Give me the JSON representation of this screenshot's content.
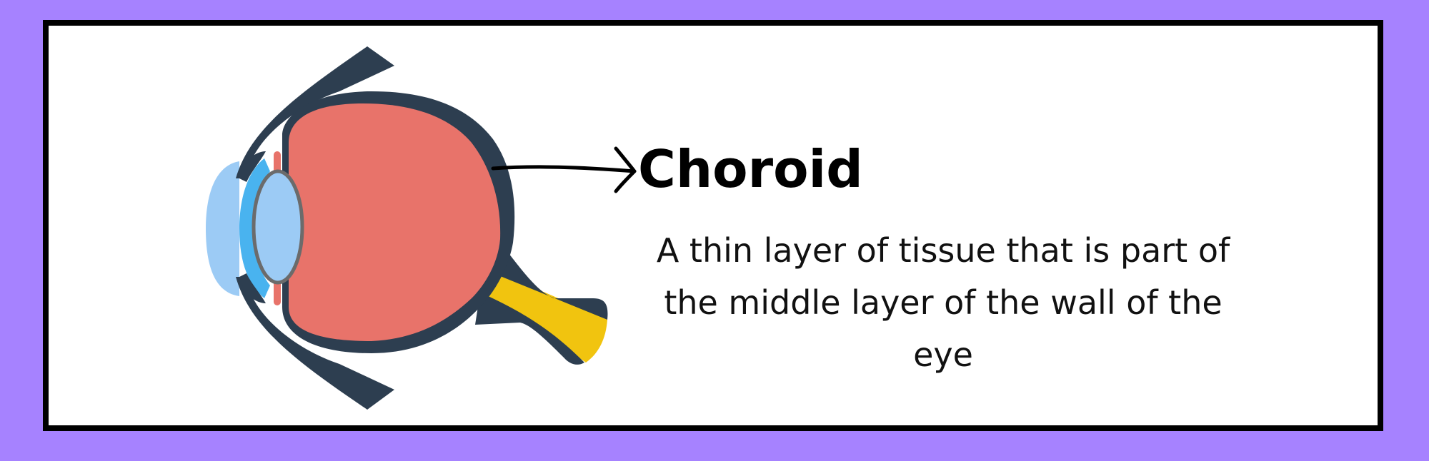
{
  "diagram": {
    "label": "Choroid",
    "description": "A thin layer of tissue that is part of the middle layer of the wall of the eye"
  },
  "colors": {
    "background": "#a682ff",
    "card": "#ffffff",
    "border": "#000000",
    "sclera": "#2d3e50",
    "vitreous": "#e8736a",
    "lens": "#9ccbf5",
    "cornea": "#49b3ef",
    "optic_nerve": "#f1c40f",
    "arrow": "#000000"
  },
  "icons": [
    "eye-anatomy-illustration",
    "pointer-arrow-icon"
  ]
}
